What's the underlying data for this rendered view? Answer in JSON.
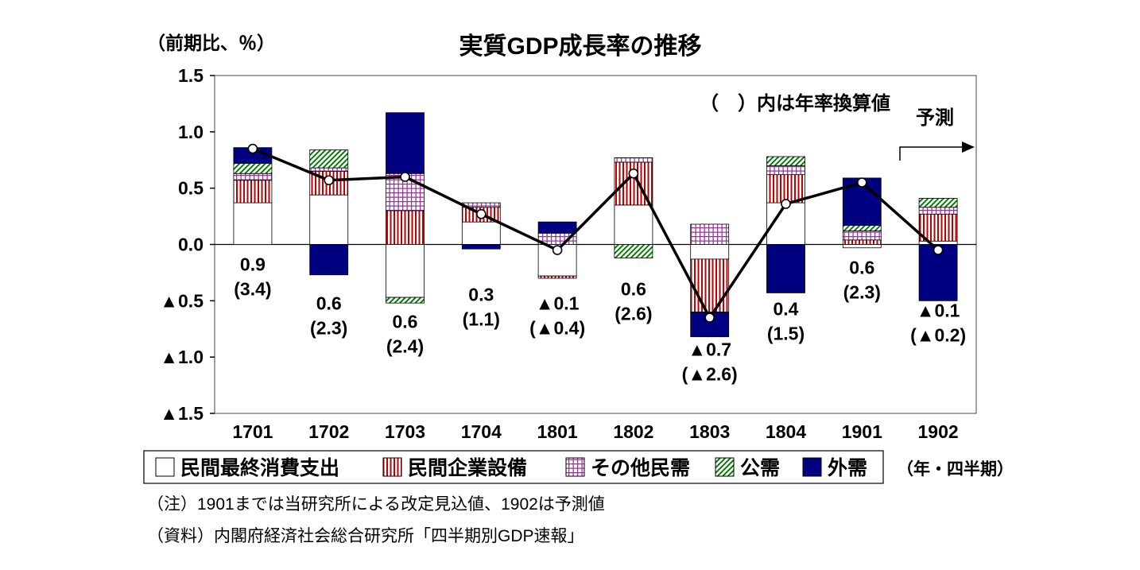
{
  "page": {
    "title": "実質GDP成長率の推移",
    "y_axis_unit": "（前期比、％）",
    "annotation": "（　）内は年率換算値",
    "forecast_label": "予測",
    "x_axis_unit": "（年・四半期）",
    "note1": "（注）1901までは当研究所による改定見込値、1902は予測値",
    "note2": "（資料）内閣府経済社会総合研究所「四半期別GDP速報」"
  },
  "colors": {
    "navy": "#000080",
    "red": "#C00000",
    "green": "#007A00",
    "purple": "#993399",
    "line": "#000000"
  },
  "chart_data": {
    "type": "bar",
    "subtype": "stacked-bar-with-line",
    "title": "実質GDP成長率の推移",
    "categories": [
      "1701",
      "1702",
      "1703",
      "1704",
      "1801",
      "1802",
      "1803",
      "1804",
      "1901",
      "1902"
    ],
    "series": [
      {
        "name": "民間最終消費支出",
        "style": "white",
        "values": [
          0.37,
          0.44,
          -0.47,
          0.2,
          -0.28,
          0.35,
          -0.13,
          0.37,
          -0.03,
          0.03
        ]
      },
      {
        "name": "民間企業設備",
        "style": "red-vertical-stripes",
        "values": [
          0.2,
          0.21,
          0.3,
          0.13,
          -0.02,
          0.38,
          -0.47,
          0.25,
          0.04,
          0.24
        ]
      },
      {
        "name": "その他民需",
        "style": "purple-grid",
        "values": [
          0.06,
          0.03,
          0.33,
          0.04,
          0.1,
          0.04,
          0.18,
          0.08,
          0.08,
          0.06
        ]
      },
      {
        "name": "公需",
        "style": "green-diagonal-stripes",
        "values": [
          0.09,
          0.16,
          -0.05,
          0.0,
          0.0,
          -0.12,
          0.0,
          0.08,
          0.05,
          0.08
        ]
      },
      {
        "name": "外需",
        "style": "navy-solid",
        "values": [
          0.14,
          -0.27,
          0.54,
          -0.04,
          0.1,
          0.0,
          -0.22,
          -0.43,
          0.42,
          -0.5
        ]
      }
    ],
    "line": {
      "values": [
        0.85,
        0.57,
        0.6,
        0.27,
        -0.05,
        0.63,
        -0.65,
        0.36,
        0.55,
        -0.05
      ]
    },
    "data_labels": [
      {
        "qoq": "0.9",
        "annualized": "(3.4)"
      },
      {
        "qoq": "0.6",
        "annualized": "(2.3)"
      },
      {
        "qoq": "0.6",
        "annualized": "(2.4)"
      },
      {
        "qoq": "0.3",
        "annualized": "(1.1)"
      },
      {
        "qoq": "▲0.1",
        "annualized": "(▲0.4)"
      },
      {
        "qoq": "0.6",
        "annualized": "(2.6)"
      },
      {
        "qoq": "▲0.7",
        "annualized": "(▲2.6)"
      },
      {
        "qoq": "0.4",
        "annualized": "(1.5)"
      },
      {
        "qoq": "0.6",
        "annualized": "(2.3)"
      },
      {
        "qoq": "▲0.1",
        "annualized": "(▲0.2)"
      }
    ],
    "ylim": [
      -1.5,
      1.5
    ],
    "ytick_labels": [
      "1.5",
      "1.0",
      "0.5",
      "0.0",
      "▲0.5",
      "▲1.0",
      "▲1.5"
    ],
    "grid": false,
    "legend_position": "bottom"
  }
}
